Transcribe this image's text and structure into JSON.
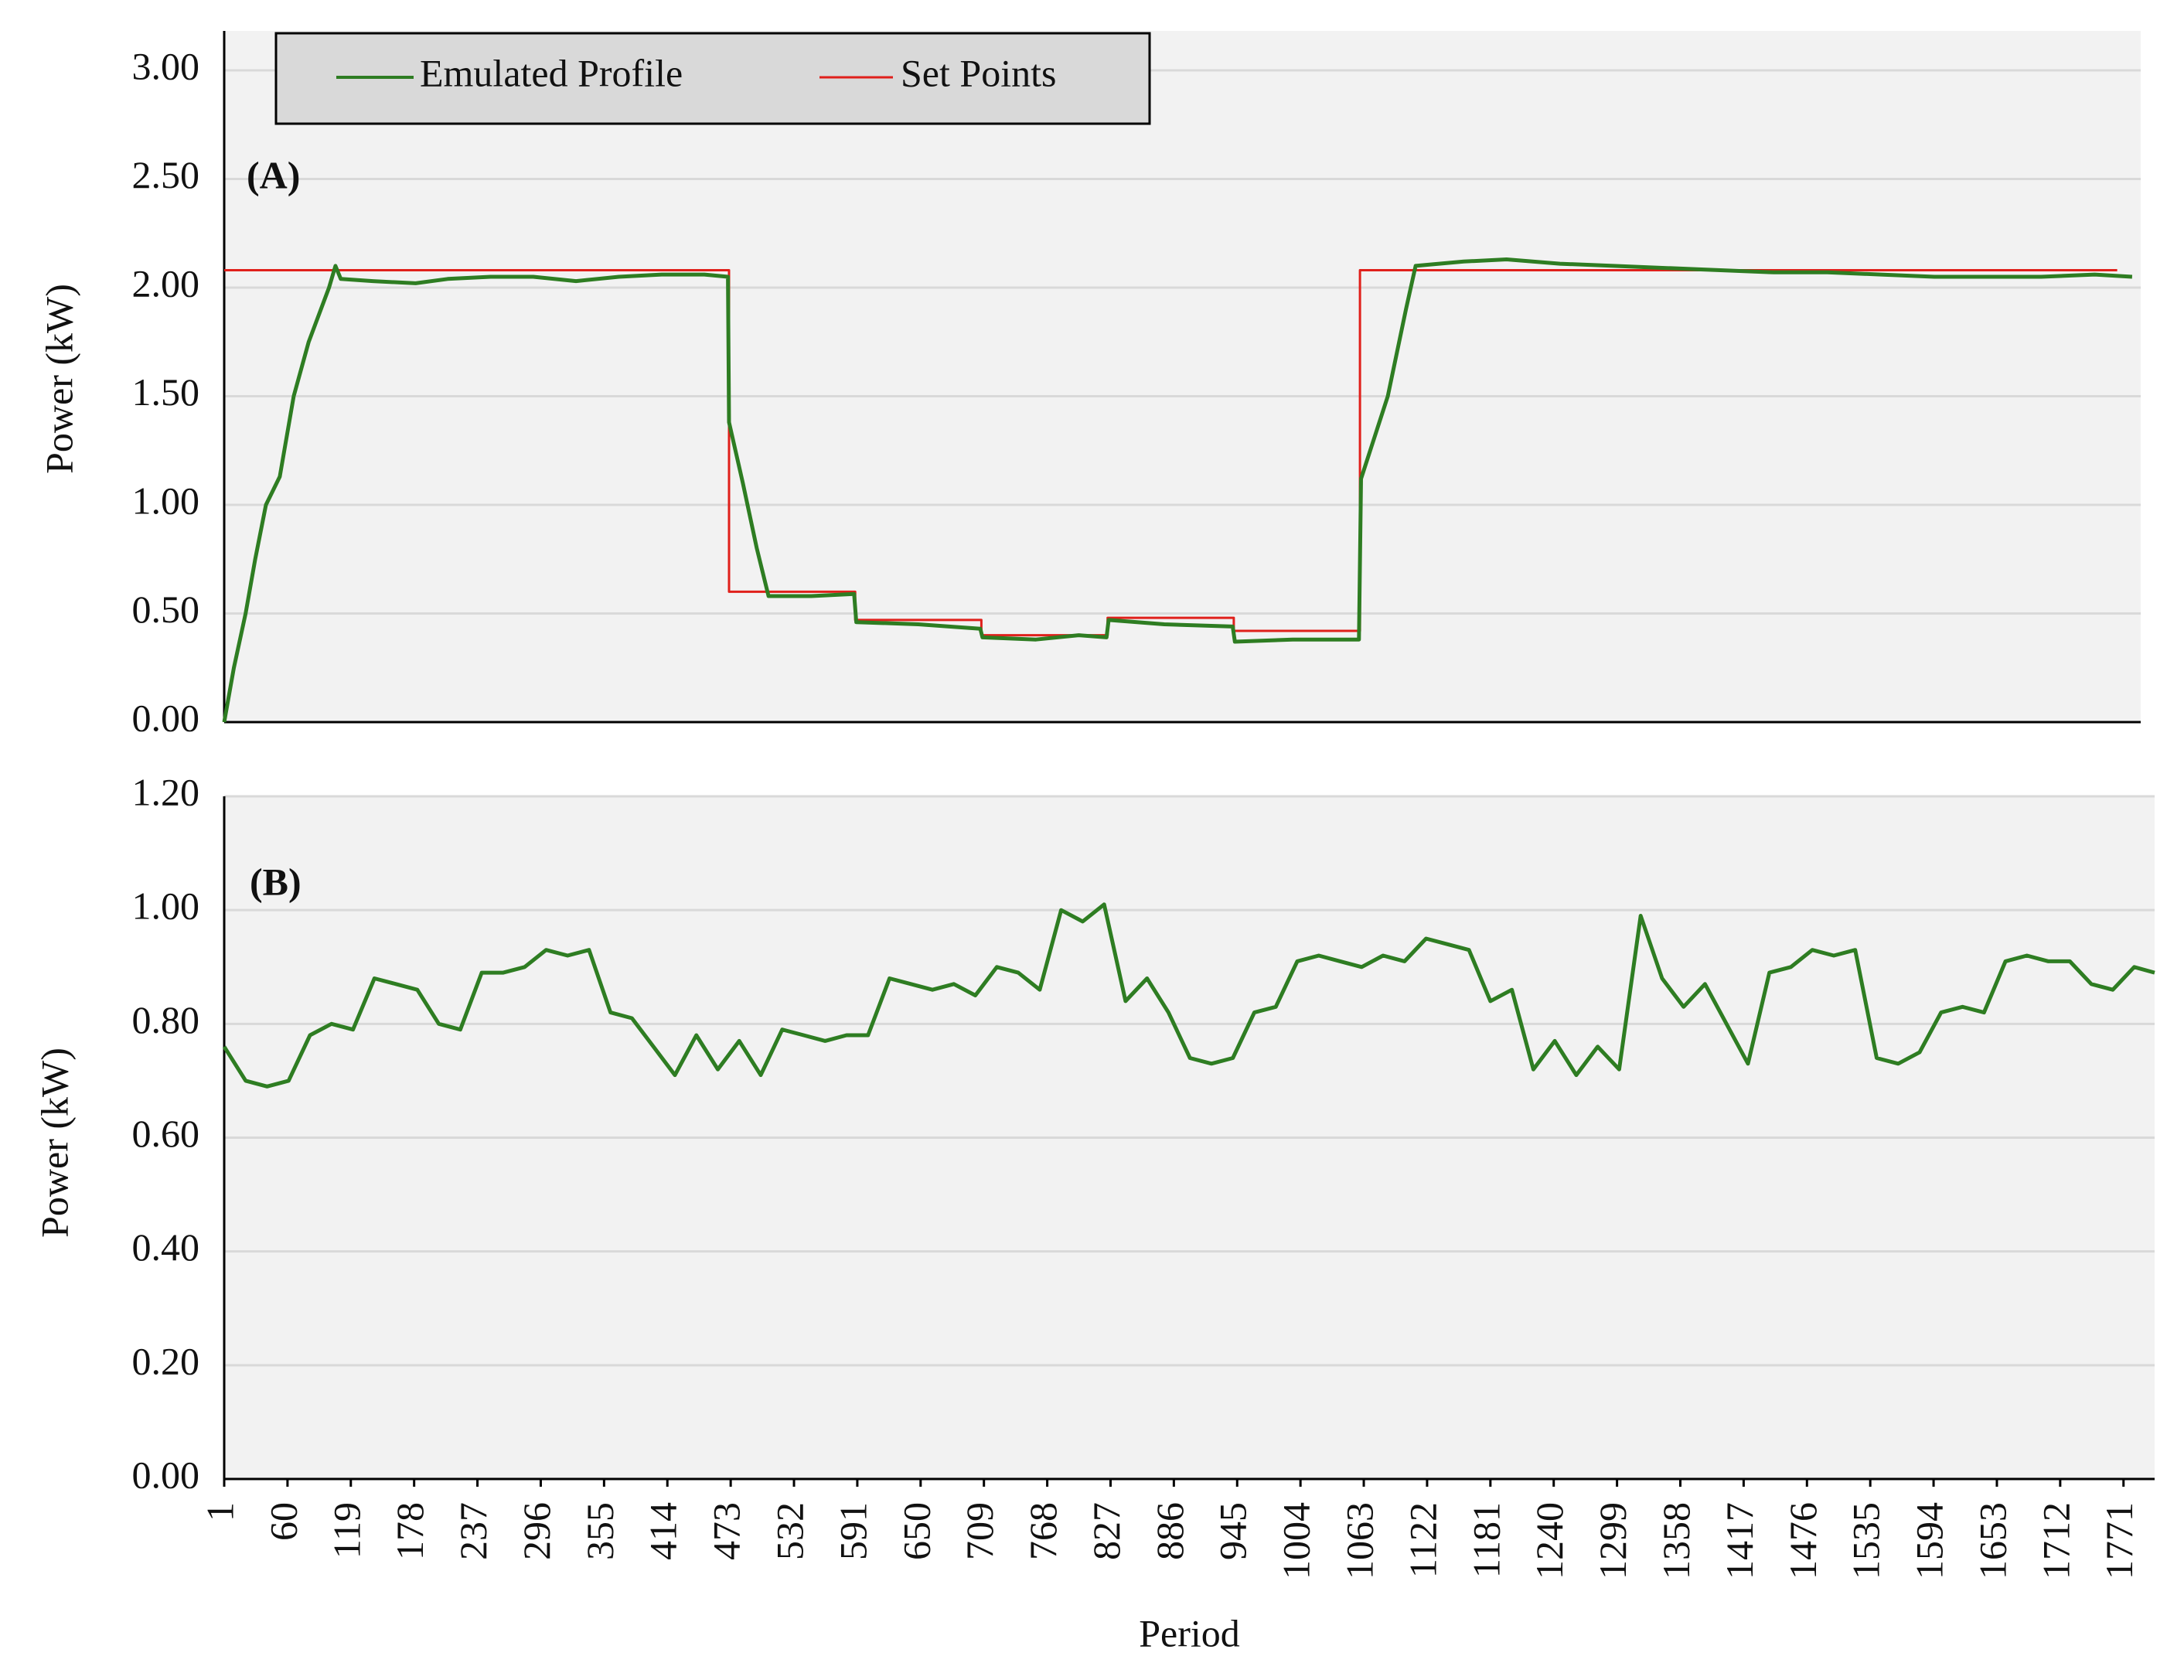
{
  "chart_data": [
    {
      "type": "line",
      "annotation": "(A)",
      "y_label": "Power (kW)",
      "ylim": [
        0,
        3.0
      ],
      "yticks": [
        {
          "value": 0,
          "label": "0.00"
        },
        {
          "value": 0.5,
          "label": "0.50"
        },
        {
          "value": 1.0,
          "label": "1.00"
        },
        {
          "value": 1.5,
          "label": "1.50"
        },
        {
          "value": 2.0,
          "label": "2.00"
        },
        {
          "value": 2.5,
          "label": "2.50"
        },
        {
          "value": 3.0,
          "label": "3.00"
        }
      ],
      "xlim": [
        1,
        1793
      ],
      "grid": true,
      "legend": "upper left",
      "series": [
        {
          "name": "Emulated Profile",
          "color": "#2e7d22",
          "x": [
            1,
            10,
            21,
            30,
            40,
            53,
            66,
            80,
            99,
            105,
            110,
            140,
            180,
            210,
            250,
            290,
            330,
            370,
            410,
            450,
            472,
            473,
            486,
            499,
            510,
            550,
            590,
            592,
            650,
            708,
            710,
            760,
            800,
            826,
            828,
            880,
            944,
            946,
            1000,
            1062,
            1064,
            1089,
            1106,
            1115,
            1160,
            1200,
            1250,
            1300,
            1350,
            1400,
            1450,
            1500,
            1550,
            1600,
            1650,
            1700,
            1750,
            1785
          ],
          "values": [
            0,
            0.25,
            0.5,
            0.75,
            1.0,
            1.13,
            1.5,
            1.75,
            2.0,
            2.1,
            2.04,
            2.03,
            2.02,
            2.04,
            2.05,
            2.05,
            2.03,
            2.05,
            2.06,
            2.06,
            2.05,
            1.38,
            1.1,
            0.8,
            0.58,
            0.58,
            0.59,
            0.46,
            0.45,
            0.43,
            0.39,
            0.38,
            0.4,
            0.39,
            0.47,
            0.45,
            0.44,
            0.37,
            0.38,
            0.38,
            1.12,
            1.5,
            1.9,
            2.1,
            2.12,
            2.13,
            2.11,
            2.1,
            2.09,
            2.08,
            2.07,
            2.07,
            2.06,
            2.05,
            2.05,
            2.05,
            2.06,
            2.05
          ]
        },
        {
          "name": "Set Points",
          "color": "#e0201b",
          "x": [
            1,
            473,
            473,
            591,
            591,
            709,
            709,
            827,
            827,
            945,
            945,
            1063,
            1063,
            1771
          ],
          "values": [
            2.08,
            2.08,
            0.6,
            0.6,
            0.47,
            0.47,
            0.4,
            0.4,
            0.48,
            0.48,
            0.42,
            0.42,
            2.08,
            2.08
          ]
        }
      ]
    },
    {
      "type": "line",
      "annotation": "(B)",
      "y_label": "Power (kW)",
      "x_label": "Period",
      "ylim": [
        0,
        1.2
      ],
      "yticks": [
        {
          "value": 0,
          "label": "0.00"
        },
        {
          "value": 0.2,
          "label": "0.20"
        },
        {
          "value": 0.4,
          "label": "0.40"
        },
        {
          "value": 0.6,
          "label": "0.60"
        },
        {
          "value": 0.8,
          "label": "0.80"
        },
        {
          "value": 1.0,
          "label": "1.00"
        },
        {
          "value": 1.2,
          "label": "1.20"
        }
      ],
      "xlim": [
        1,
        1800
      ],
      "xticks": [
        1,
        60,
        119,
        178,
        237,
        296,
        355,
        414,
        473,
        532,
        591,
        650,
        709,
        768,
        827,
        886,
        945,
        1004,
        1063,
        1122,
        1181,
        1240,
        1299,
        1358,
        1417,
        1476,
        1535,
        1594,
        1653,
        1712,
        1771
      ],
      "grid": true,
      "series": [
        {
          "name": "Emulated Profile",
          "color": "#2e7d22",
          "x": [
            1,
            21,
            41,
            61,
            81,
            101,
            121,
            141,
            161,
            181,
            201,
            221,
            241,
            261,
            281,
            301,
            321,
            341,
            361,
            381,
            401,
            421,
            441,
            461,
            481,
            501,
            521,
            541,
            561,
            581,
            601,
            621,
            641,
            661,
            681,
            701,
            721,
            741,
            761,
            781,
            801,
            821,
            841,
            861,
            881,
            901,
            921,
            941,
            961,
            981,
            1001,
            1021,
            1041,
            1061,
            1081,
            1101,
            1121,
            1141,
            1161,
            1181,
            1201,
            1221,
            1241,
            1261,
            1281,
            1301,
            1321,
            1341,
            1361,
            1381,
            1401,
            1421,
            1441,
            1461,
            1481,
            1501,
            1521,
            1541,
            1561,
            1581,
            1601,
            1621,
            1641,
            1661,
            1681,
            1701,
            1721,
            1741,
            1761,
            1781,
            1800
          ],
          "values": [
            0.76,
            0.7,
            0.69,
            0.7,
            0.78,
            0.8,
            0.79,
            0.88,
            0.87,
            0.86,
            0.8,
            0.79,
            0.89,
            0.89,
            0.9,
            0.93,
            0.92,
            0.93,
            0.82,
            0.81,
            0.76,
            0.71,
            0.78,
            0.72,
            0.77,
            0.71,
            0.79,
            0.78,
            0.77,
            0.78,
            0.78,
            0.88,
            0.87,
            0.86,
            0.87,
            0.85,
            0.9,
            0.89,
            0.86,
            1.0,
            0.98,
            1.01,
            0.84,
            0.88,
            0.82,
            0.74,
            0.73,
            0.74,
            0.82,
            0.83,
            0.91,
            0.92,
            0.91,
            0.9,
            0.92,
            0.91,
            0.95,
            0.94,
            0.93,
            0.84,
            0.86,
            0.72,
            0.77,
            0.71,
            0.76,
            0.72,
            0.99,
            0.88,
            0.83,
            0.87,
            0.8,
            0.73,
            0.89,
            0.9,
            0.93,
            0.92,
            0.93,
            0.74,
            0.73,
            0.75,
            0.82,
            0.83,
            0.82,
            0.91,
            0.92,
            0.91,
            0.91,
            0.87,
            0.86,
            0.9,
            0.89
          ]
        }
      ]
    }
  ]
}
